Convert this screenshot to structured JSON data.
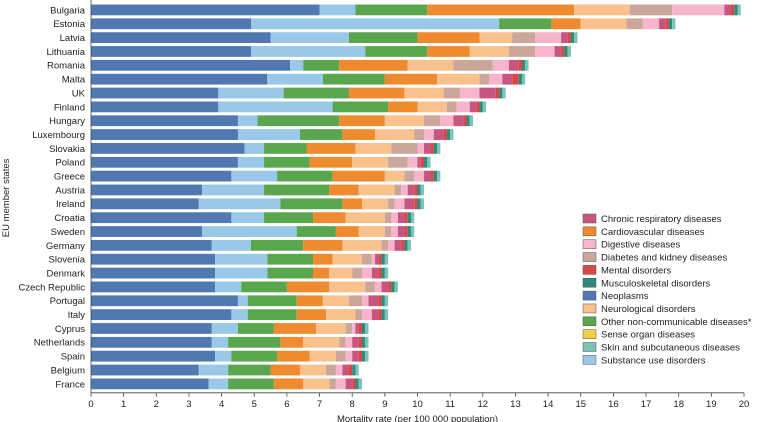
{
  "chart_data": {
    "type": "bar",
    "orientation": "horizontal",
    "stacked": true,
    "xlabel": "Mortality rate (per 100 000 population)",
    "ylabel": "EU member states",
    "xlim": [
      0,
      20
    ],
    "xticks": [
      "0",
      "1",
      "2",
      "3",
      "4",
      "5",
      "6",
      "7",
      "8",
      "9",
      "10",
      "11",
      "12",
      "13",
      "14",
      "15",
      "16",
      "17",
      "18",
      "19",
      "20"
    ],
    "grid": false,
    "legend_position": "right",
    "categories": [
      "Bulgaria",
      "Estonia",
      "Latvia",
      "Lithuania",
      "Romania",
      "Malta",
      "UK",
      "Finland",
      "Hungary",
      "Luxembourg",
      "Slovakia",
      "Poland",
      "Greece",
      "Austria",
      "Ireland",
      "Croatia",
      "Sweden",
      "Germany",
      "Slovenia",
      "Denmark",
      "Czech Republic",
      "Portugal",
      "Italy",
      "Cyprus",
      "Netherlands",
      "Spain",
      "Belgium",
      "France"
    ],
    "series": [
      {
        "name": "Neoplasms",
        "color": "#4f79b0",
        "values": [
          7.0,
          4.9,
          5.5,
          4.9,
          6.1,
          5.4,
          3.9,
          3.9,
          4.5,
          4.5,
          4.7,
          4.5,
          4.3,
          3.4,
          3.3,
          4.3,
          3.4,
          3.7,
          3.8,
          3.8,
          3.8,
          4.5,
          4.3,
          3.7,
          3.7,
          3.8,
          3.3,
          3.6
        ]
      },
      {
        "name": "Substance use disorders",
        "color": "#99c8e8",
        "values": [
          1.1,
          7.6,
          2.4,
          3.5,
          0.4,
          1.7,
          2.0,
          3.5,
          0.6,
          1.9,
          0.6,
          0.8,
          1.4,
          1.9,
          2.5,
          1.0,
          2.9,
          1.2,
          1.6,
          1.6,
          0.8,
          0.3,
          0.5,
          0.8,
          0.5,
          0.5,
          0.9,
          0.6
        ]
      },
      {
        "name": "Other non-communicable diseases*",
        "color": "#5aa64e",
        "values": [
          2.2,
          1.6,
          2.1,
          1.9,
          1.1,
          1.9,
          2.0,
          1.7,
          2.5,
          1.3,
          1.3,
          1.4,
          1.7,
          2.0,
          1.9,
          1.5,
          1.2,
          1.6,
          1.4,
          1.4,
          1.4,
          1.5,
          1.5,
          1.1,
          1.6,
          1.4,
          1.3,
          1.4
        ]
      },
      {
        "name": "Cardiovascular diseases",
        "color": "#f08a2e",
        "values": [
          4.5,
          0.9,
          1.9,
          1.3,
          2.1,
          1.6,
          1.7,
          0.9,
          1.4,
          1.0,
          1.5,
          1.3,
          1.6,
          0.9,
          0.6,
          1.0,
          0.7,
          1.2,
          0.6,
          0.5,
          1.3,
          0.8,
          0.9,
          1.3,
          0.7,
          1.0,
          0.9,
          0.9
        ]
      },
      {
        "name": "Neurological disorders",
        "color": "#f9c18c",
        "values": [
          1.7,
          1.4,
          1.0,
          1.2,
          1.4,
          1.3,
          1.2,
          0.9,
          1.2,
          1.2,
          1.1,
          1.1,
          0.6,
          1.1,
          0.8,
          1.2,
          0.8,
          1.2,
          0.9,
          0.7,
          1.1,
          0.8,
          0.9,
          0.9,
          1.1,
          0.8,
          0.8,
          0.8
        ]
      },
      {
        "name": "Diabetes and kidney diseases",
        "color": "#caa79a",
        "values": [
          1.3,
          0.5,
          0.7,
          0.8,
          1.2,
          0.3,
          0.5,
          0.3,
          0.5,
          0.3,
          0.8,
          0.6,
          0.3,
          0.2,
          0.2,
          0.2,
          0.2,
          0.2,
          0.3,
          0.3,
          0.3,
          0.4,
          0.2,
          0.2,
          0.2,
          0.3,
          0.3,
          0.2
        ]
      },
      {
        "name": "Digestive diseases",
        "color": "#f7b4cd",
        "values": [
          1.6,
          0.5,
          0.8,
          0.6,
          0.5,
          0.4,
          0.6,
          0.4,
          0.4,
          0.3,
          0.2,
          0.3,
          0.3,
          0.2,
          0.3,
          0.2,
          0.2,
          0.2,
          0.1,
          0.3,
          0.2,
          0.2,
          0.3,
          0.1,
          0.2,
          0.2,
          0.2,
          0.3
        ]
      },
      {
        "name": "Chronic respiratory diseases",
        "color": "#c75581",
        "values": [
          0.2,
          0.2,
          0.2,
          0.2,
          0.3,
          0.3,
          0.5,
          0.2,
          0.3,
          0.3,
          0.2,
          0.1,
          0.2,
          0.2,
          0.3,
          0.2,
          0.2,
          0.2,
          0.1,
          0.2,
          0.2,
          0.3,
          0.2,
          0.1,
          0.2,
          0.2,
          0.2,
          0.2
        ]
      },
      {
        "name": "Mental disorders",
        "color": "#d94744",
        "values": [
          0.1,
          0.1,
          0.1,
          0.1,
          0.1,
          0.2,
          0.1,
          0.1,
          0.1,
          0.1,
          0.1,
          0.1,
          0.1,
          0.1,
          0.1,
          0.1,
          0.1,
          0.1,
          0.1,
          0.1,
          0.1,
          0.1,
          0.1,
          0.1,
          0.1,
          0.1,
          0.1,
          0.1
        ]
      },
      {
        "name": "Musculoskeletal disorders",
        "color": "#2d8b7b",
        "values": [
          0.1,
          0.1,
          0.1,
          0.1,
          0.1,
          0.1,
          0.1,
          0.1,
          0.1,
          0.1,
          0.1,
          0.1,
          0.1,
          0.1,
          0.1,
          0.1,
          0.1,
          0.1,
          0.1,
          0.1,
          0.1,
          0.1,
          0.1,
          0.1,
          0.1,
          0.1,
          0.1,
          0.1
        ]
      },
      {
        "name": "Skin and subcutaneous diseases",
        "color": "#7ac3b8",
        "values": [
          0.1,
          0.1,
          0.1,
          0.1,
          0.1,
          0.1,
          0.1,
          0.1,
          0.1,
          0.1,
          0.1,
          0.1,
          0.1,
          0.1,
          0.1,
          0.1,
          0.1,
          0.1,
          0.1,
          0.1,
          0.1,
          0.1,
          0.1,
          0.1,
          0.1,
          0.1,
          0.1,
          0.1
        ]
      },
      {
        "name": "Sense organ diseases",
        "color": "#f3cf4c",
        "values": [
          0,
          0,
          0,
          0,
          0,
          0,
          0,
          0,
          0,
          0,
          0,
          0,
          0,
          0,
          0,
          0,
          0,
          0,
          0,
          0,
          0,
          0,
          0,
          0,
          0,
          0,
          0,
          0
        ]
      }
    ],
    "legend": [
      {
        "name": "Chronic respiratory diseases",
        "color": "#c75581"
      },
      {
        "name": "Cardiovascular diseases",
        "color": "#f08a2e"
      },
      {
        "name": "Digestive diseases",
        "color": "#f7b4cd"
      },
      {
        "name": "Diabetes and kidney diseases",
        "color": "#caa79a"
      },
      {
        "name": "Mental disorders",
        "color": "#d94744"
      },
      {
        "name": "Musculoskeletal disorders",
        "color": "#2d8b7b"
      },
      {
        "name": "Neoplasms",
        "color": "#4f79b0"
      },
      {
        "name": "Neurological disorders",
        "color": "#f9c18c"
      },
      {
        "name": "Other non-communicable diseases*",
        "color": "#5aa64e"
      },
      {
        "name": "Sense organ diseases",
        "color": "#f3cf4c"
      },
      {
        "name": "Skin and subcutaneous diseases",
        "color": "#7ac3b8"
      },
      {
        "name": "Substance use disorders",
        "color": "#99c8e8"
      }
    ]
  }
}
